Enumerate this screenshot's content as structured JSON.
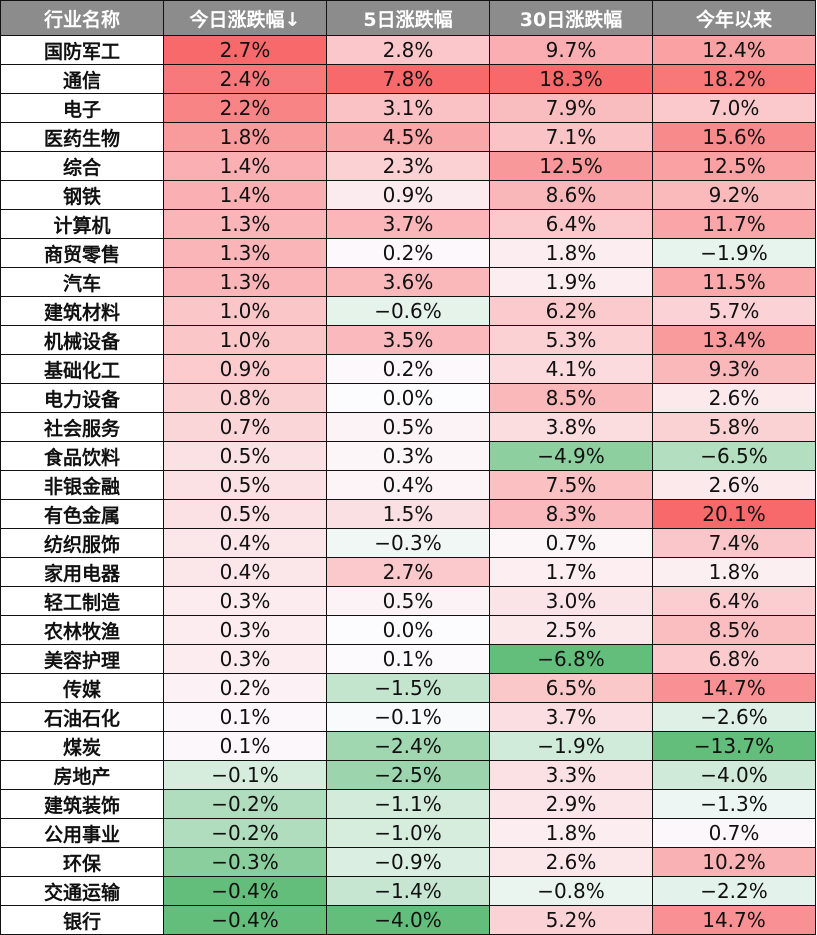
{
  "table": {
    "headers": [
      "行业名称",
      "今日涨跌幅↓",
      "5日涨跌幅",
      "30日涨跌幅",
      "今年以来"
    ],
    "rows": [
      [
        "国防军工",
        "2.7%",
        "2.8%",
        "9.7%",
        "12.4%"
      ],
      [
        "通信",
        "2.4%",
        "7.8%",
        "18.3%",
        "18.2%"
      ],
      [
        "电子",
        "2.2%",
        "3.1%",
        "7.9%",
        "7.0%"
      ],
      [
        "医药生物",
        "1.8%",
        "4.5%",
        "7.1%",
        "15.6%"
      ],
      [
        "综合",
        "1.4%",
        "2.3%",
        "12.5%",
        "12.5%"
      ],
      [
        "钢铁",
        "1.4%",
        "0.9%",
        "8.6%",
        "9.2%"
      ],
      [
        "计算机",
        "1.3%",
        "3.7%",
        "6.4%",
        "11.7%"
      ],
      [
        "商贸零售",
        "1.3%",
        "0.2%",
        "1.8%",
        "−1.9%"
      ],
      [
        "汽车",
        "1.3%",
        "3.6%",
        "1.9%",
        "11.5%"
      ],
      [
        "建筑材料",
        "1.0%",
        "−0.6%",
        "6.2%",
        "5.7%"
      ],
      [
        "机械设备",
        "1.0%",
        "3.5%",
        "5.3%",
        "13.4%"
      ],
      [
        "基础化工",
        "0.9%",
        "0.2%",
        "4.1%",
        "9.3%"
      ],
      [
        "电力设备",
        "0.8%",
        "0.0%",
        "8.5%",
        "2.6%"
      ],
      [
        "社会服务",
        "0.7%",
        "0.5%",
        "3.8%",
        "5.8%"
      ],
      [
        "食品饮料",
        "0.5%",
        "0.3%",
        "−4.9%",
        "−6.5%"
      ],
      [
        "非银金融",
        "0.5%",
        "0.4%",
        "7.5%",
        "2.6%"
      ],
      [
        "有色金属",
        "0.5%",
        "1.5%",
        "8.3%",
        "20.1%"
      ],
      [
        "纺织服饰",
        "0.4%",
        "−0.3%",
        "0.7%",
        "7.4%"
      ],
      [
        "家用电器",
        "0.4%",
        "2.7%",
        "1.7%",
        "1.8%"
      ],
      [
        "轻工制造",
        "0.3%",
        "0.5%",
        "3.0%",
        "6.4%"
      ],
      [
        "农林牧渔",
        "0.3%",
        "0.0%",
        "2.5%",
        "8.5%"
      ],
      [
        "美容护理",
        "0.3%",
        "0.1%",
        "−6.8%",
        "6.8%"
      ],
      [
        "传媒",
        "0.2%",
        "−1.5%",
        "6.5%",
        "14.7%"
      ],
      [
        "石油石化",
        "0.1%",
        "−0.1%",
        "3.7%",
        "−2.6%"
      ],
      [
        "煤炭",
        "0.1%",
        "−2.4%",
        "−1.9%",
        "−13.7%"
      ],
      [
        "房地产",
        "−0.1%",
        "−2.5%",
        "3.3%",
        "−4.0%"
      ],
      [
        "建筑装饰",
        "−0.2%",
        "−1.1%",
        "2.9%",
        "−1.3%"
      ],
      [
        "公用事业",
        "−0.2%",
        "−1.0%",
        "1.8%",
        "0.7%"
      ],
      [
        "环保",
        "−0.3%",
        "−0.9%",
        "2.6%",
        "10.2%"
      ],
      [
        "交通运输",
        "−0.4%",
        "−1.4%",
        "−0.8%",
        "−2.2%"
      ],
      [
        "银行",
        "−0.4%",
        "−4.0%",
        "5.2%",
        "14.7%"
      ]
    ]
  },
  "colors": {
    "header_bg": "#8c8c8c",
    "header_text": "#ffffff",
    "positive_max": "#f8696b",
    "negative_max": "#63be7b",
    "neutral": "#fcfcff"
  }
}
